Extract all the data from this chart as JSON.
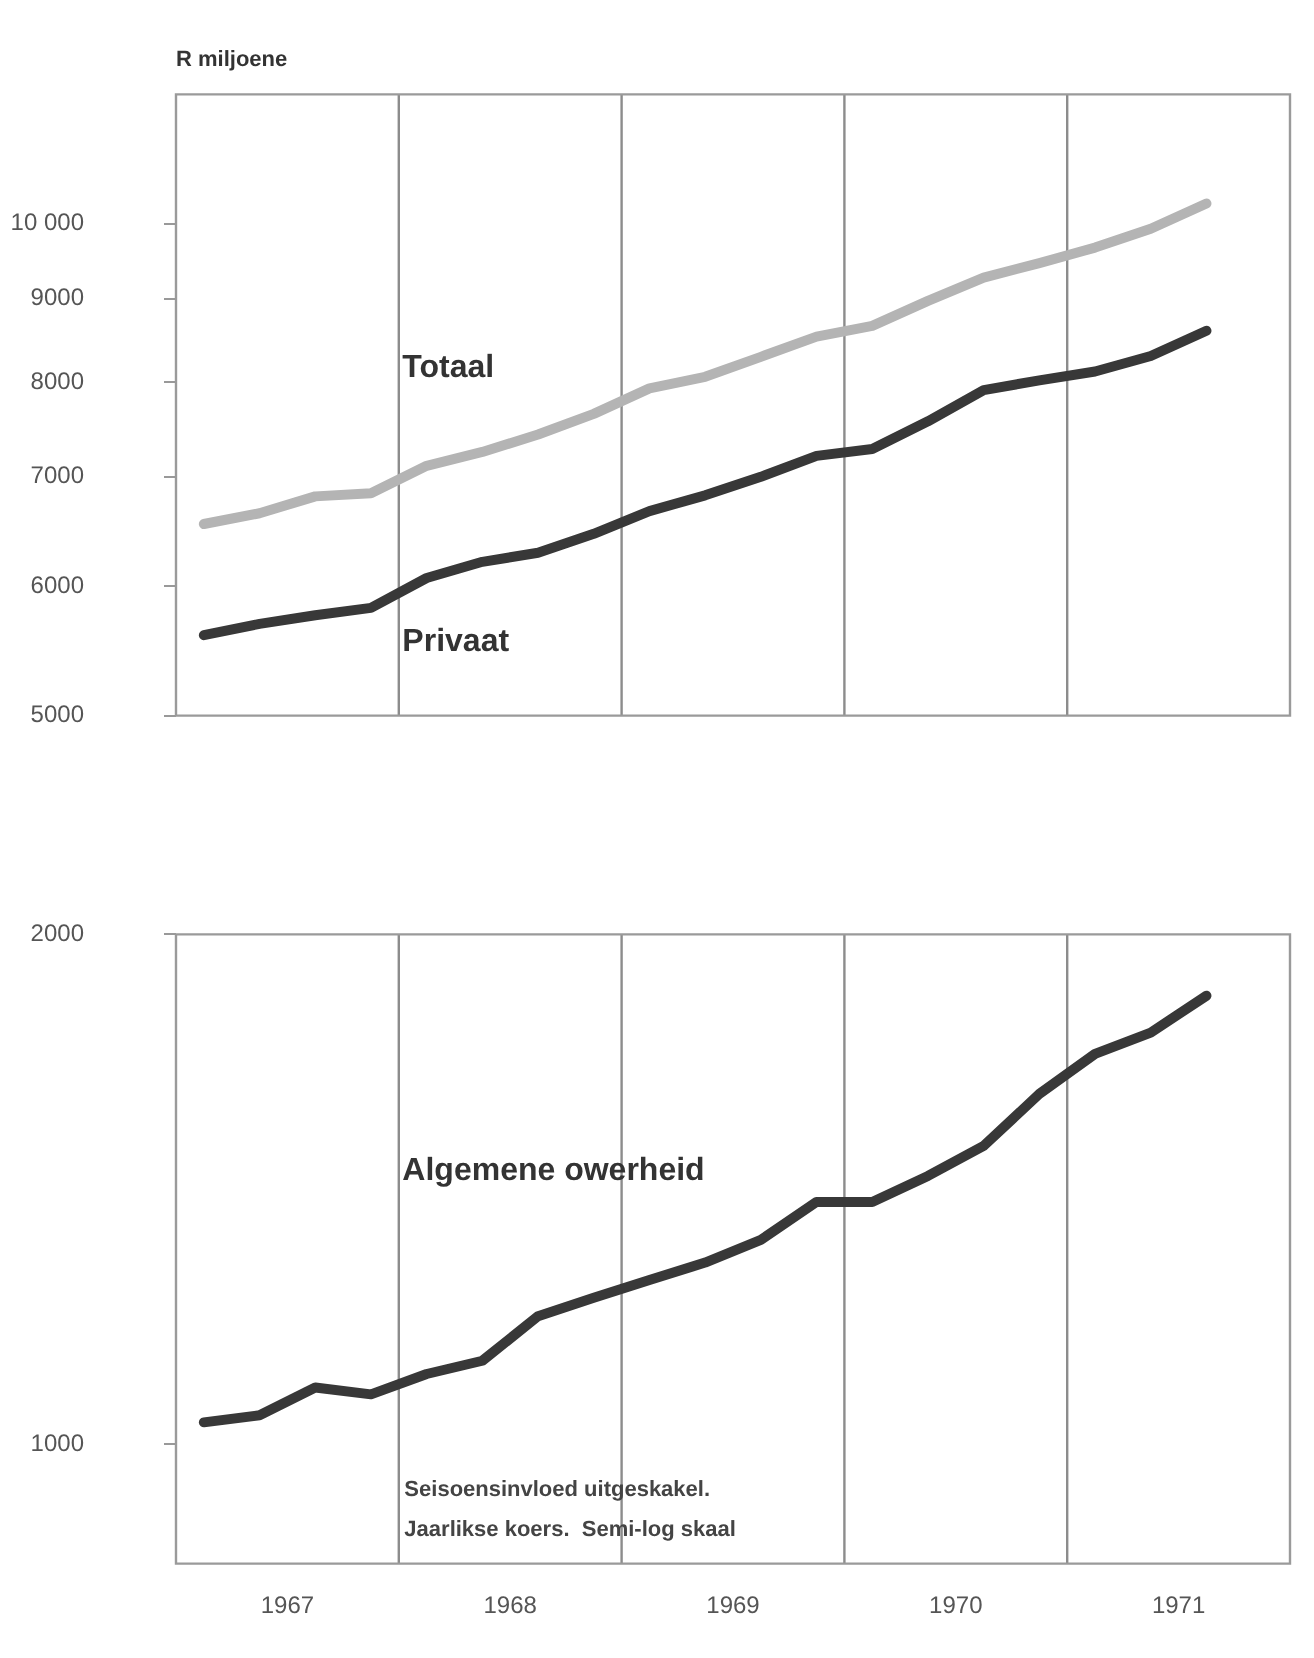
{
  "chart_data": [
    {
      "type": "line",
      "ylabel": "R miljoene",
      "log": true,
      "grid": false,
      "legend": false,
      "marker": "none",
      "line_style": "solid",
      "tick_labels": "y",
      "x": [
        1967.125,
        1967.375,
        1967.625,
        1967.875,
        1968.125,
        1968.375,
        1968.625,
        1968.875,
        1969.125,
        1969.375,
        1969.625,
        1969.875,
        1970.125,
        1970.375,
        1970.625,
        1970.875,
        1971.125,
        1971.375,
        1971.625
      ],
      "xlim": [
        1967,
        1972
      ],
      "ylim": [
        5000,
        12000
      ],
      "yticks": [
        5000,
        6000,
        7000,
        8000,
        9000,
        {
          "value": 10000,
          "label": "10 000"
        }
      ],
      "series": [
        {
          "name": "Totaal",
          "color": "#b4b4b4",
          "values": [
            6550,
            6650,
            6810,
            6840,
            7110,
            7250,
            7430,
            7650,
            7930,
            8060,
            8290,
            8530,
            8660,
            8970,
            9270,
            9460,
            9670,
            9930,
            10290
          ]
        },
        {
          "name": "Privaat",
          "color": "#383838",
          "values": [
            5600,
            5690,
            5760,
            5820,
            6070,
            6210,
            6290,
            6460,
            6670,
            6820,
            7000,
            7210,
            7280,
            7570,
            7910,
            8020,
            8120,
            8300,
            8600
          ]
        }
      ],
      "ref_lines": [
        {
          "axis": "x",
          "value": 1968,
          "color": "#8c8c8c"
        },
        {
          "axis": "x",
          "value": 1969,
          "color": "#8c8c8c"
        },
        {
          "axis": "x",
          "value": 1970,
          "color": "#8c8c8c"
        },
        {
          "axis": "x",
          "value": 1971,
          "color": "#8c8c8c"
        }
      ]
    },
    {
      "type": "line",
      "log": true,
      "grid": false,
      "legend": false,
      "marker": "none",
      "line_style": "solid",
      "x": [
        1967.125,
        1967.375,
        1967.625,
        1967.875,
        1968.125,
        1968.375,
        1968.625,
        1968.875,
        1969.125,
        1969.375,
        1969.625,
        1969.875,
        1970.125,
        1970.375,
        1970.625,
        1970.875,
        1971.125,
        1971.375,
        1971.625
      ],
      "xlim": [
        1967,
        1972
      ],
      "xticks": [
        {
          "value": 1967.5,
          "label": "1967"
        },
        {
          "value": 1968.5,
          "label": "1968"
        },
        {
          "value": 1969.5,
          "label": "1969"
        },
        {
          "value": 1970.5,
          "label": "1970"
        },
        {
          "value": 1971.5,
          "label": "1971"
        }
      ],
      "ylim": [
        850,
        2000
      ],
      "yticks": [
        1000,
        2000
      ],
      "series": [
        {
          "name": "Algemene owerheid",
          "color": "#383838",
          "values": [
            1030,
            1040,
            1080,
            1070,
            1100,
            1120,
            1190,
            1220,
            1250,
            1280,
            1320,
            1390,
            1390,
            1440,
            1500,
            1610,
            1700,
            1750,
            1840
          ]
        }
      ],
      "ref_lines": [
        {
          "axis": "x",
          "value": 1968,
          "color": "#8c8c8c"
        },
        {
          "axis": "x",
          "value": 1969,
          "color": "#8c8c8c"
        },
        {
          "axis": "x",
          "value": 1970,
          "color": "#8c8c8c"
        },
        {
          "axis": "x",
          "value": 1971,
          "color": "#8c8c8c"
        }
      ],
      "annotations": [
        "Seisoensinvloed uitgeskakel.",
        "Jaarlikse koers.  Semi-log skaal"
      ]
    }
  ]
}
